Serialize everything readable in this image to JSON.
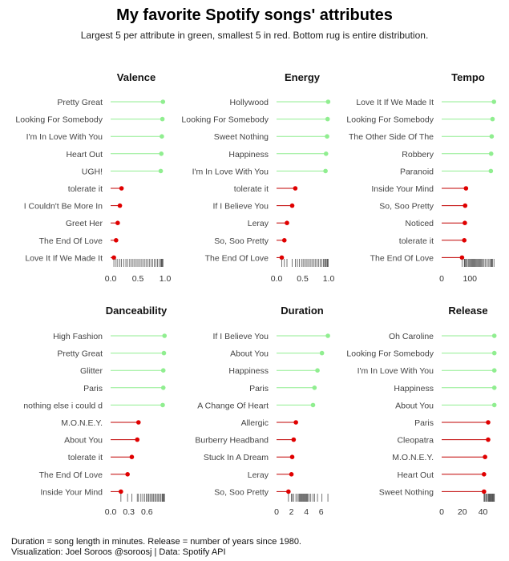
{
  "title": "My favorite Spotify songs' attributes",
  "subtitle": "Largest 5 per attribute in green, smallest 5 in red.  Bottom rug is entire distribution.",
  "caption_line1": "Duration = song length in minutes.  Release = number of years since 1980.",
  "caption_line2": "Visualization: Joel Soroos @soroosj   |  Data: Spotify API",
  "colors": {
    "top": "#90ee90",
    "bottom": "#e00000",
    "bottom_line": "#c00000",
    "axis_text": "#333333",
    "label_text": "#444444"
  },
  "chart_data": [
    {
      "type": "lollipop",
      "title": "Valence",
      "xlim": [
        0,
        1
      ],
      "xticks": [
        0.0,
        0.5,
        1.0
      ],
      "xtick_labels": [
        "0.0",
        "0.5",
        "1.0"
      ],
      "items": [
        {
          "label": "Pretty Great",
          "value": 0.96,
          "group": "top"
        },
        {
          "label": "Looking For Somebody",
          "value": 0.95,
          "group": "top"
        },
        {
          "label": "I'm In Love With You",
          "value": 0.94,
          "group": "top"
        },
        {
          "label": "Heart Out",
          "value": 0.93,
          "group": "top"
        },
        {
          "label": "UGH!",
          "value": 0.92,
          "group": "top"
        },
        {
          "label": "tolerate it",
          "value": 0.2,
          "group": "bottom"
        },
        {
          "label": "I Couldn't Be More In",
          "value": 0.17,
          "group": "bottom"
        },
        {
          "label": "Greet Her",
          "value": 0.13,
          "group": "bottom"
        },
        {
          "label": "The End Of Love",
          "value": 0.1,
          "group": "bottom"
        },
        {
          "label": "Love It If We Made It",
          "value": 0.06,
          "group": "bottom"
        }
      ],
      "rug": [
        0.06,
        0.1,
        0.13,
        0.17,
        0.2,
        0.24,
        0.28,
        0.31,
        0.35,
        0.38,
        0.41,
        0.44,
        0.47,
        0.5,
        0.53,
        0.56,
        0.59,
        0.62,
        0.65,
        0.68,
        0.71,
        0.74,
        0.77,
        0.8,
        0.83,
        0.86,
        0.89,
        0.92,
        0.93,
        0.94,
        0.95,
        0.96
      ]
    },
    {
      "type": "lollipop",
      "title": "Energy",
      "xlim": [
        0,
        1
      ],
      "xticks": [
        0.0,
        0.5,
        1.0
      ],
      "xtick_labels": [
        "0.0",
        "0.5",
        "1.0"
      ],
      "items": [
        {
          "label": "Hollywood",
          "value": 0.99,
          "group": "top"
        },
        {
          "label": "Looking For Somebody",
          "value": 0.98,
          "group": "top"
        },
        {
          "label": "Sweet Nothing",
          "value": 0.97,
          "group": "top"
        },
        {
          "label": "Happiness",
          "value": 0.95,
          "group": "top"
        },
        {
          "label": "I'm In Love With You",
          "value": 0.94,
          "group": "top"
        },
        {
          "label": "tolerate it",
          "value": 0.36,
          "group": "bottom"
        },
        {
          "label": "If I Believe You",
          "value": 0.3,
          "group": "bottom"
        },
        {
          "label": "Leray",
          "value": 0.2,
          "group": "bottom"
        },
        {
          "label": "So, Soo Pretty",
          "value": 0.15,
          "group": "bottom"
        },
        {
          "label": "The End Of Love",
          "value": 0.1,
          "group": "bottom"
        }
      ],
      "rug": [
        0.1,
        0.15,
        0.2,
        0.3,
        0.36,
        0.4,
        0.44,
        0.48,
        0.51,
        0.54,
        0.57,
        0.6,
        0.63,
        0.66,
        0.69,
        0.72,
        0.75,
        0.78,
        0.81,
        0.84,
        0.87,
        0.9,
        0.92,
        0.94,
        0.95,
        0.97,
        0.98,
        0.99
      ]
    },
    {
      "type": "lollipop",
      "title": "Tempo",
      "xlim": [
        0,
        190
      ],
      "xticks": [
        0,
        100
      ],
      "xtick_labels": [
        "0",
        "100"
      ],
      "items": [
        {
          "label": "Love It If We Made It",
          "value": 185,
          "group": "top"
        },
        {
          "label": "Looking For Somebody",
          "value": 180,
          "group": "top"
        },
        {
          "label": "The Other Side Of The",
          "value": 177,
          "group": "top"
        },
        {
          "label": "Robbery",
          "value": 175,
          "group": "top"
        },
        {
          "label": "Paranoid",
          "value": 174,
          "group": "top"
        },
        {
          "label": "Inside Your Mind",
          "value": 86,
          "group": "bottom"
        },
        {
          "label": "So, Soo Pretty",
          "value": 83,
          "group": "bottom"
        },
        {
          "label": "Noticed",
          "value": 82,
          "group": "bottom"
        },
        {
          "label": "tolerate it",
          "value": 80,
          "group": "bottom"
        },
        {
          "label": "The End Of Love",
          "value": 72,
          "group": "bottom"
        }
      ],
      "rug": [
        72,
        80,
        82,
        83,
        86,
        90,
        94,
        97,
        100,
        103,
        106,
        109,
        112,
        115,
        118,
        121,
        124,
        127,
        130,
        133,
        136,
        139,
        142,
        146,
        150,
        155,
        160,
        165,
        170,
        174,
        175,
        177,
        180,
        185
      ]
    },
    {
      "type": "lollipop",
      "title": "Danceability",
      "xlim": [
        0,
        0.9
      ],
      "xticks": [
        0.0,
        0.3,
        0.6
      ],
      "xtick_labels": [
        "0.0",
        "0.3",
        "0.6"
      ],
      "items": [
        {
          "label": "High Fashion",
          "value": 0.89,
          "group": "top"
        },
        {
          "label": "Pretty Great",
          "value": 0.88,
          "group": "top"
        },
        {
          "label": "Glitter",
          "value": 0.87,
          "group": "top"
        },
        {
          "label": "Paris",
          "value": 0.87,
          "group": "top"
        },
        {
          "label": "nothing else i could d",
          "value": 0.86,
          "group": "top"
        },
        {
          "label": "M.O.N.E.Y.",
          "value": 0.46,
          "group": "bottom"
        },
        {
          "label": "About You",
          "value": 0.44,
          "group": "bottom"
        },
        {
          "label": "tolerate it",
          "value": 0.35,
          "group": "bottom"
        },
        {
          "label": "The End Of Love",
          "value": 0.28,
          "group": "bottom"
        },
        {
          "label": "Inside Your Mind",
          "value": 0.17,
          "group": "bottom"
        }
      ],
      "rug": [
        0.17,
        0.28,
        0.35,
        0.44,
        0.46,
        0.5,
        0.53,
        0.56,
        0.59,
        0.61,
        0.63,
        0.65,
        0.67,
        0.69,
        0.71,
        0.73,
        0.75,
        0.77,
        0.79,
        0.81,
        0.83,
        0.85,
        0.86,
        0.87,
        0.88,
        0.89
      ]
    },
    {
      "type": "lollipop",
      "title": "Duration",
      "xlim": [
        0,
        7
      ],
      "xticks": [
        0,
        2,
        4,
        6
      ],
      "xtick_labels": [
        "0",
        "2",
        "4",
        "6"
      ],
      "items": [
        {
          "label": "If I Believe You",
          "value": 6.9,
          "group": "top"
        },
        {
          "label": "About You",
          "value": 6.1,
          "group": "top"
        },
        {
          "label": "Happiness",
          "value": 5.5,
          "group": "top"
        },
        {
          "label": "Paris",
          "value": 5.1,
          "group": "top"
        },
        {
          "label": "A Change Of Heart",
          "value": 4.9,
          "group": "top"
        },
        {
          "label": "Allergic",
          "value": 2.6,
          "group": "bottom"
        },
        {
          "label": "Burberry Headband",
          "value": 2.3,
          "group": "bottom"
        },
        {
          "label": "Stuck In A Dream",
          "value": 2.1,
          "group": "bottom"
        },
        {
          "label": "Leray",
          "value": 2.0,
          "group": "bottom"
        },
        {
          "label": "So, Soo Pretty",
          "value": 1.6,
          "group": "bottom"
        }
      ],
      "rug": [
        1.6,
        2.0,
        2.1,
        2.3,
        2.6,
        2.8,
        3.0,
        3.1,
        3.2,
        3.3,
        3.4,
        3.5,
        3.6,
        3.7,
        3.8,
        3.9,
        4.0,
        4.1,
        4.2,
        4.4,
        4.6,
        4.9,
        5.1,
        5.5,
        6.1,
        6.9
      ]
    },
    {
      "type": "lollipop",
      "title": "Release",
      "xlim": [
        0,
        52
      ],
      "xticks": [
        0,
        20,
        40
      ],
      "xtick_labels": [
        "0",
        "20",
        "40"
      ],
      "items": [
        {
          "label": "Oh Caroline",
          "value": 51,
          "group": "top"
        },
        {
          "label": "Looking For Somebody",
          "value": 51,
          "group": "top"
        },
        {
          "label": "I'm In Love With You",
          "value": 51,
          "group": "top"
        },
        {
          "label": "Happiness",
          "value": 51,
          "group": "top"
        },
        {
          "label": "About You",
          "value": 51,
          "group": "top"
        },
        {
          "label": "Paris",
          "value": 45,
          "group": "bottom"
        },
        {
          "label": "Cleopatra",
          "value": 45,
          "group": "bottom"
        },
        {
          "label": "M.O.N.E.Y.",
          "value": 42,
          "group": "bottom"
        },
        {
          "label": "Heart Out",
          "value": 41,
          "group": "bottom"
        },
        {
          "label": "Sweet Nothing",
          "value": 41,
          "group": "bottom"
        }
      ],
      "rug": [
        41,
        41.5,
        42,
        43,
        44,
        45,
        45.5,
        46,
        46.5,
        47,
        47.5,
        48,
        48.5,
        49,
        49.5,
        50,
        50.5,
        51
      ]
    }
  ]
}
